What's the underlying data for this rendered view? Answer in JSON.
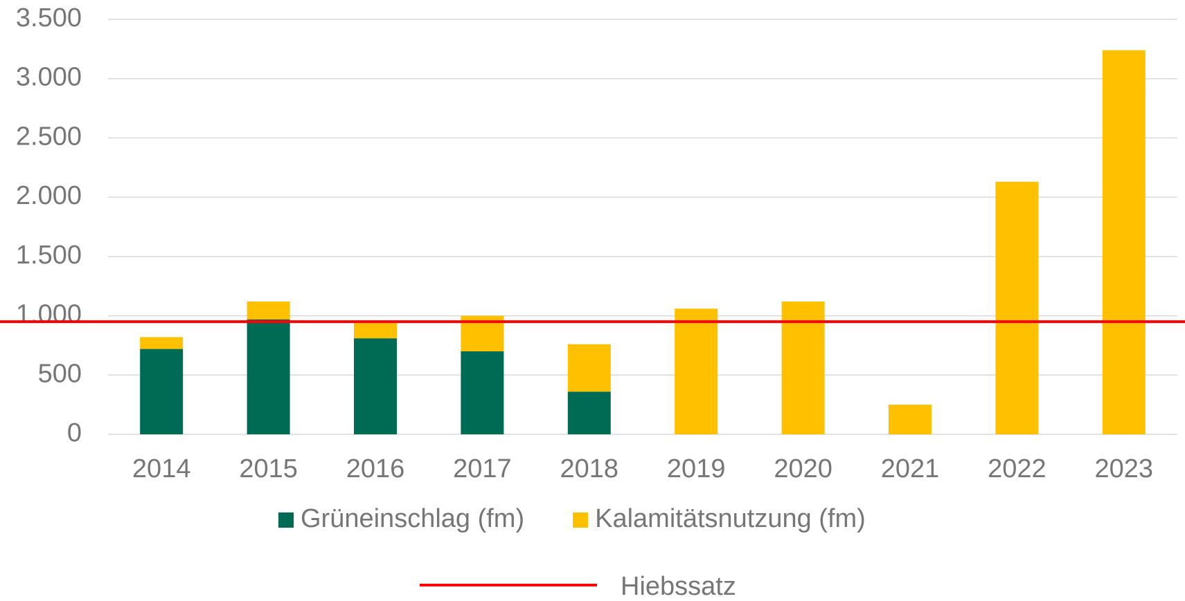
{
  "chart_data": {
    "type": "stacked_bar",
    "categories": [
      "2014",
      "2015",
      "2016",
      "2017",
      "2018",
      "2019",
      "2020",
      "2021",
      "2022",
      "2023"
    ],
    "series": [
      {
        "name": "Grüneinschlag (fm)",
        "color": "#006b54",
        "values": [
          720,
          970,
          810,
          700,
          360,
          0,
          0,
          0,
          0,
          0
        ]
      },
      {
        "name": "Kalamitätsnutzung (fm)",
        "color": "#ffc000",
        "values": [
          100,
          150,
          140,
          300,
          400,
          1060,
          1120,
          250,
          2130,
          3240
        ]
      }
    ],
    "reference_line": {
      "name": "Hiebssatz",
      "color": "#ff0000",
      "value": 950
    },
    "ylim": [
      0,
      3500
    ],
    "yticks": [
      0,
      500,
      {
        "value": 1000,
        "label": "1.000"
      },
      {
        "value": 1500,
        "label": "1.500"
      },
      {
        "value": 2000,
        "label": "2.000"
      },
      {
        "value": 2500,
        "label": "2.500"
      },
      {
        "value": 3000,
        "label": "3.000"
      },
      {
        "value": 3500,
        "label": "3.500"
      }
    ],
    "grid": true
  }
}
